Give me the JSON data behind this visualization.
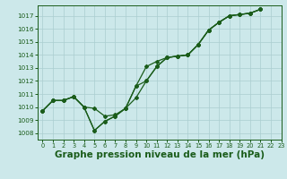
{
  "background_color": "#cce8ea",
  "grid_color": "#aacdd0",
  "line_color": "#1a5c1a",
  "xlabel": "Graphe pression niveau de la mer (hPa)",
  "xlabel_fontsize": 7.5,
  "xlim": [
    -0.5,
    23
  ],
  "ylim": [
    1007.5,
    1017.8
  ],
  "yticks": [
    1008,
    1009,
    1010,
    1011,
    1012,
    1013,
    1014,
    1015,
    1016,
    1017
  ],
  "xticks": [
    0,
    1,
    2,
    3,
    4,
    5,
    6,
    7,
    8,
    9,
    10,
    11,
    12,
    13,
    14,
    15,
    16,
    17,
    18,
    19,
    20,
    21,
    22,
    23
  ],
  "line1_x": [
    0,
    1,
    2,
    3,
    4,
    5,
    6,
    7,
    8,
    9,
    10,
    11,
    12,
    13,
    14,
    15,
    16,
    17,
    18,
    19,
    20,
    21
  ],
  "line1_y": [
    1009.7,
    1010.5,
    1010.5,
    1010.8,
    1010.0,
    1009.9,
    1009.3,
    1009.4,
    1009.9,
    1011.6,
    1013.1,
    1013.5,
    1013.8,
    1013.9,
    1014.0,
    1014.8,
    1015.9,
    1016.5,
    1017.0,
    1017.1,
    1017.2,
    1017.5
  ],
  "line2_x": [
    0,
    1,
    2,
    3,
    4,
    5,
    6,
    7,
    8,
    9,
    10,
    11,
    12,
    13,
    14,
    15,
    16,
    17,
    18,
    19,
    20,
    21
  ],
  "line2_y": [
    1009.7,
    1010.5,
    1010.5,
    1010.8,
    1010.0,
    1008.2,
    1008.9,
    1009.3,
    1009.9,
    1010.7,
    1012.0,
    1013.1,
    1013.8,
    1013.9,
    1014.0,
    1014.8,
    1015.9,
    1016.5,
    1017.0,
    1017.1,
    1017.2,
    1017.5
  ],
  "line3_x": [
    0,
    1,
    2,
    3,
    4,
    5,
    6,
    7,
    8,
    9,
    10,
    11,
    12,
    13,
    14,
    15,
    16,
    17,
    18,
    19,
    20,
    21
  ],
  "line3_y": [
    1009.7,
    1010.5,
    1010.5,
    1010.8,
    1010.0,
    1008.2,
    1008.9,
    1009.3,
    1009.9,
    1011.6,
    1012.0,
    1013.1,
    1013.8,
    1013.9,
    1014.0,
    1014.8,
    1015.9,
    1016.5,
    1017.0,
    1017.1,
    1017.2,
    1017.5
  ]
}
